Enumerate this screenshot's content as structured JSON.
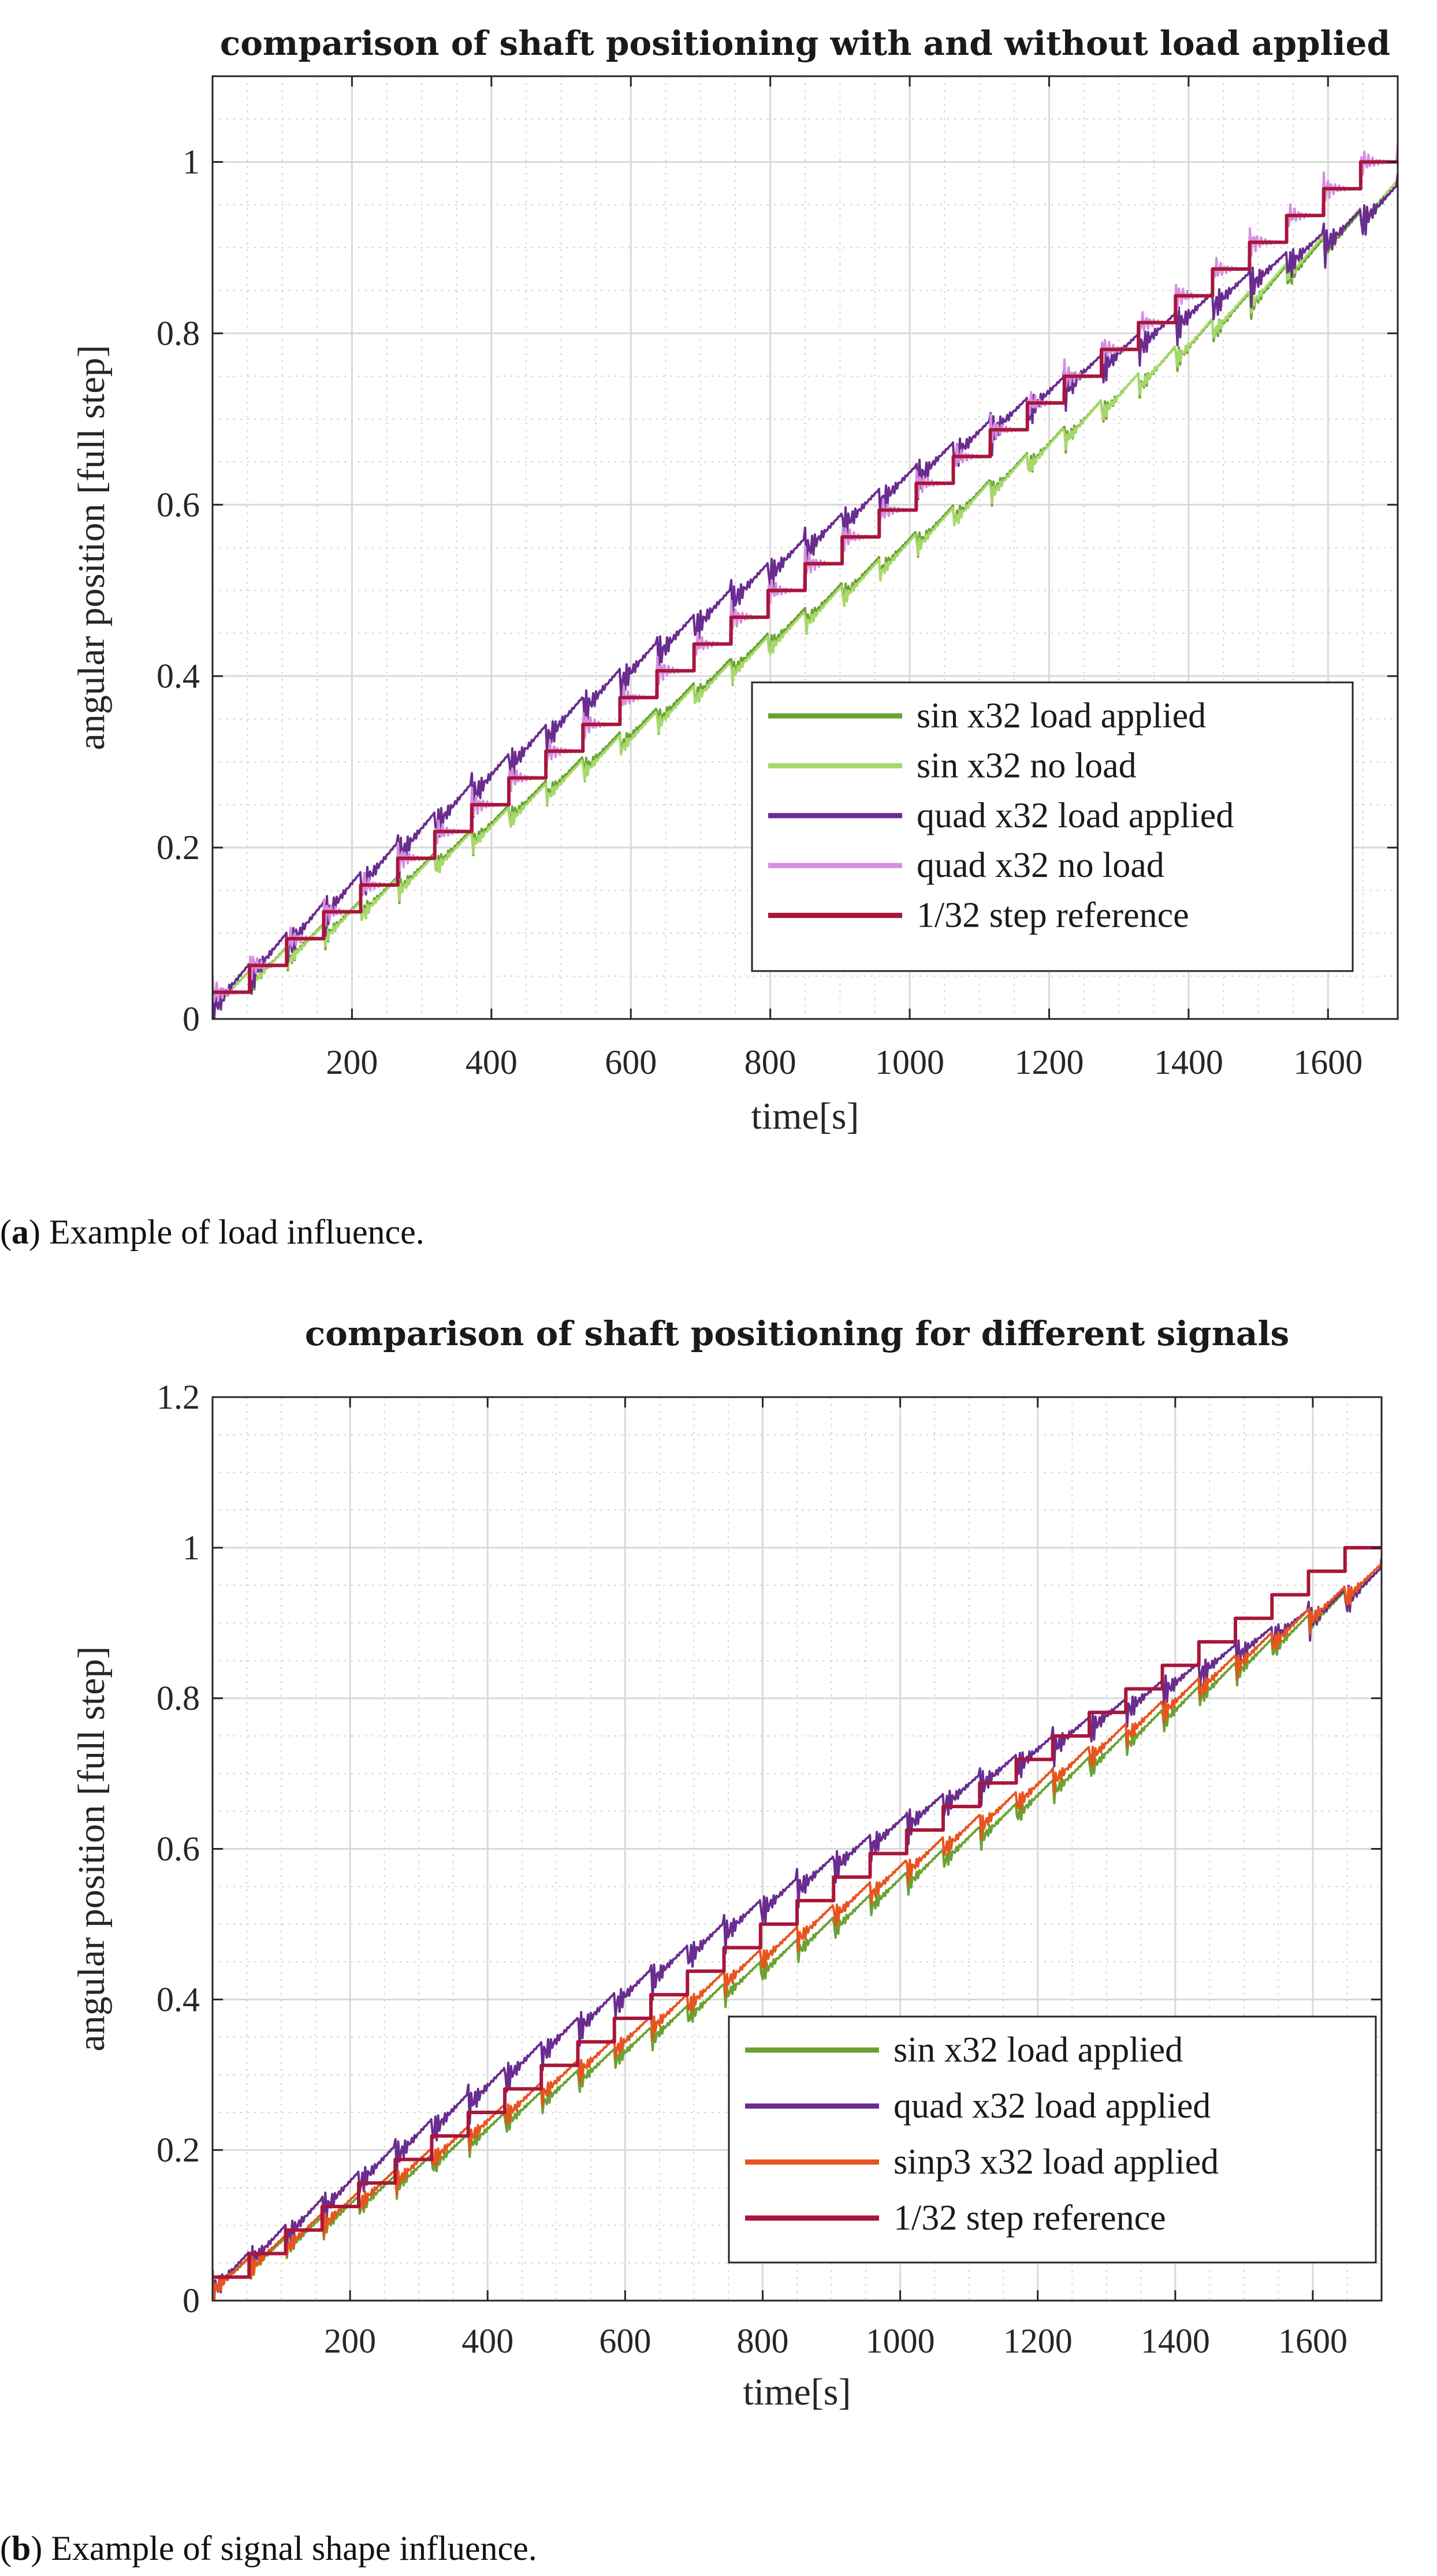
{
  "chart_data": [
    {
      "type": "line",
      "title": "comparison of shaft positioning with and without load applied",
      "xlabel": "time[s]",
      "ylabel": "angular position [full step]",
      "xlim": [
        0,
        1700
      ],
      "ylim": [
        0,
        1.1
      ],
      "xticks": [
        200,
        400,
        600,
        800,
        1000,
        1200,
        1400,
        1600
      ],
      "yticks": [
        0,
        0.2,
        0.4,
        0.6,
        0.8,
        1
      ],
      "ytick_labels": [
        "0",
        "0.2",
        "0.4",
        "0.6",
        "0.8",
        "1"
      ],
      "grid": true,
      "minor_grid": true,
      "legend_position": "bottom-right",
      "series": [
        {
          "name": "sin x32 load applied",
          "color": "#6aa232",
          "kind": "smooth",
          "end": 0.965,
          "lag": 0.022,
          "osc": 0.018
        },
        {
          "name": "sin x32 no load",
          "color": "#a6d96a",
          "kind": "smooth",
          "end": 0.97,
          "lag": 0.028,
          "osc": 0.012
        },
        {
          "name": "quad x32 load applied",
          "color": "#6a2c8f",
          "kind": "bulge",
          "end": 0.965,
          "lag": 0.0,
          "osc": 0.03
        },
        {
          "name": "quad x32 no load",
          "color": "#d58fe0",
          "kind": "stair",
          "end": 1.0,
          "lag": 0.0,
          "osc": 0.02
        },
        {
          "name": "1/32 step reference",
          "color": "#a8163a",
          "kind": "reference",
          "end": 1.0,
          "lag": 0.0,
          "osc": 0.0
        }
      ],
      "caption_bold": "a",
      "caption_rest": ") Example of load influence."
    },
    {
      "type": "line",
      "title": "comparison of shaft positioning for different signals",
      "xlabel": "time[s]",
      "ylabel": "angular position [full step]",
      "xlim": [
        0,
        1700
      ],
      "ylim": [
        0,
        1.2
      ],
      "xticks": [
        200,
        400,
        600,
        800,
        1000,
        1200,
        1400,
        1600
      ],
      "yticks": [
        0,
        0.2,
        0.4,
        0.6,
        0.8,
        1,
        1.2
      ],
      "ytick_labels": [
        "0",
        "0.2",
        "0.4",
        "0.6",
        "0.8",
        "1",
        "1.2"
      ],
      "grid": true,
      "minor_grid": true,
      "legend_position": "bottom-right",
      "series": [
        {
          "name": "sin x32 load applied",
          "color": "#6aa232",
          "kind": "smooth",
          "end": 0.965,
          "lag": 0.022,
          "osc": 0.018
        },
        {
          "name": "quad x32 load applied",
          "color": "#6a2c8f",
          "kind": "bulge",
          "end": 0.965,
          "lag": 0.0,
          "osc": 0.03
        },
        {
          "name": "sinp3 x32 load applied",
          "color": "#e8541e",
          "kind": "smooth",
          "end": 0.97,
          "lag": 0.008,
          "osc": 0.02
        },
        {
          "name": "1/32 step reference",
          "color": "#a8163a",
          "kind": "reference",
          "end": 1.0,
          "lag": 0.0,
          "osc": 0.0
        }
      ],
      "caption_bold": "b",
      "caption_rest": ") Example of signal shape influence."
    }
  ]
}
